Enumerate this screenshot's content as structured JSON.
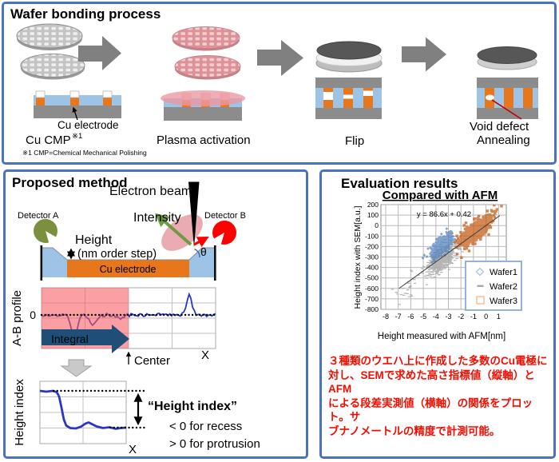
{
  "top_panel": {
    "title": "Wafer bonding process",
    "cu_electrode_label": "Cu electrode",
    "void_defect_label": "Void defect",
    "void_color": "#c00000",
    "footnote": "※1 CMP=Chemical Mechanical Polishing",
    "stages": [
      {
        "label": "Cu CMP",
        "sup": "※1"
      },
      {
        "label": "Plasma activation"
      },
      {
        "label": "Flip"
      },
      {
        "label": "Annealing"
      }
    ]
  },
  "proposed_panel": {
    "title": "Proposed method",
    "electron_beam_label": "Electron beam",
    "detector_a_label": "Detector A",
    "detector_b_label": "Detector B",
    "intensity_label": "Intensity",
    "height_label": "Height",
    "height_sub_label": "(nm order step)",
    "cu_electrode_label": "Cu electrode",
    "theta_label": "θ",
    "ab_profile": {
      "y_axis": "A-B profile",
      "zero": "0",
      "integral": "Integral",
      "center": "Center",
      "x_axis": "X"
    },
    "height_index": {
      "y_axis": "Height index",
      "x_axis": "X",
      "callout": "“Height index”",
      "callout_color": "#2323cf",
      "recess": "< 0 for recess",
      "protrusion": "> 0 for protrusion"
    }
  },
  "evaluation_panel": {
    "title": "Evaluation results",
    "description": "３種類のウエハ上に作成した多数のCu電極に\n対し、SEMで求めた高さ指標値（縦軸）とAFM\nによる段差実測値（横軸）の関係をプロット。サ\nブナノメートルの精度で計測可能。",
    "description_color": "#f20d00"
  },
  "chart_data": {
    "type": "scatter",
    "title": "Compared with AFM",
    "xlabel": "Height measured with AFM[nm]",
    "ylabel": "Height index with SEM[a.u.]",
    "xlim": [
      -8.5,
      1.6
    ],
    "ylim": [
      -800,
      200
    ],
    "xticks": [
      -8,
      -7,
      -6,
      -5,
      -4,
      -3,
      -2,
      -1,
      0,
      1
    ],
    "yticks": [
      200,
      100,
      0,
      -100,
      -200,
      -300,
      -400,
      -500,
      -600,
      -700,
      -800
    ],
    "grid": true,
    "equation_label": "y = 86.6x + 0.42",
    "trend": {
      "slope": 86.6,
      "intercept": 0.42,
      "x_start": -6.95,
      "x_end": 1.1
    },
    "legend_position": "lower right",
    "legend": [
      {
        "label": "Wafer1",
        "marker": "diamond",
        "color": "#9dc3e6"
      },
      {
        "label": "Wafer2",
        "marker": "dash",
        "color": "#a6a6a6"
      },
      {
        "label": "Wafer3",
        "marker": "square",
        "color": "#f4b183"
      }
    ],
    "series": [
      {
        "name": "Wafer2",
        "marker": "dash",
        "color": "#a8a8a8",
        "clusters": [
          {
            "n": 620,
            "cx": -3.5,
            "cy": -310,
            "sx": 0.55,
            "sy": 55
          },
          {
            "n": 25,
            "cx": -6.1,
            "cy": -580,
            "sx": 0.5,
            "sy": 55
          }
        ]
      },
      {
        "name": "Wafer1",
        "marker": "diamond",
        "color": "#4f81bd",
        "clusters": [
          {
            "n": 500,
            "cx": -3.55,
            "cy": -190,
            "sx": 0.42,
            "sy": 38
          }
        ]
      },
      {
        "name": "Wafer3",
        "marker": "square",
        "color": "#c45911",
        "clusters": [
          {
            "n": 700,
            "cx": -0.8,
            "cy": -45,
            "sx": 0.6,
            "sy": 42
          }
        ]
      }
    ]
  }
}
